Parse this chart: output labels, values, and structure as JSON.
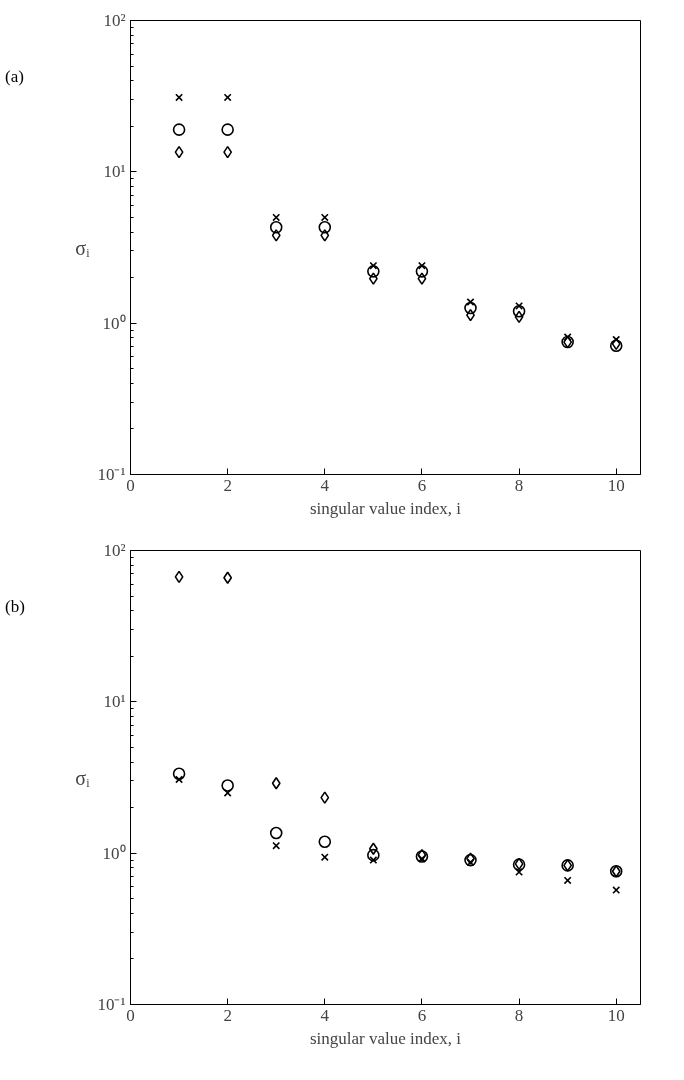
{
  "chart_data": [
    {
      "type": "scatter",
      "annotations": [
        "(a)"
      ],
      "xlabel": "singular value index, i",
      "ylabel": "σᵢ",
      "log": true,
      "grid": false,
      "xlim": [
        0,
        10.5
      ],
      "xticks": [
        0,
        2,
        4,
        6,
        8,
        10
      ],
      "ylim": [
        0.1,
        100
      ],
      "yticks": [
        {
          "value": 0.1,
          "label": "10⁻¹"
        },
        {
          "value": 1,
          "label": "10⁰"
        },
        {
          "value": 10,
          "label": "10¹"
        },
        {
          "value": 100,
          "label": "10²"
        }
      ],
      "x": [
        1,
        2,
        3,
        4,
        5,
        6,
        7,
        8,
        9,
        10
      ],
      "series": [
        {
          "color": "#000000",
          "marker": "cross",
          "values": [
            31,
            31,
            5.0,
            5.0,
            2.4,
            2.4,
            1.38,
            1.3,
            0.81,
            0.78
          ]
        },
        {
          "color": "#000000",
          "marker": "circle",
          "values": [
            19,
            19,
            4.3,
            4.3,
            2.2,
            2.2,
            1.26,
            1.2,
            0.75,
            0.71
          ]
        },
        {
          "color": "#000000",
          "marker": "diamond",
          "values": [
            13.5,
            13.5,
            3.8,
            3.8,
            1.97,
            1.97,
            1.13,
            1.1,
            0.75,
            0.73
          ]
        }
      ]
    },
    {
      "type": "scatter",
      "annotations": [
        "(b)"
      ],
      "xlabel": "singular value index, i",
      "ylabel": "σᵢ",
      "log": true,
      "grid": false,
      "xlim": [
        0,
        10.5
      ],
      "xticks": [
        0,
        2,
        4,
        6,
        8,
        10
      ],
      "ylim": [
        0.1,
        100
      ],
      "yticks": [
        {
          "value": 0.1,
          "label": "10⁻¹"
        },
        {
          "value": 1,
          "label": "10⁰"
        },
        {
          "value": 10,
          "label": "10¹"
        },
        {
          "value": 100,
          "label": "10²"
        }
      ],
      "x": [
        1,
        2,
        3,
        4,
        5,
        6,
        7,
        8,
        9,
        10
      ],
      "series": [
        {
          "color": "#000000",
          "marker": "cross",
          "values": [
            3.07,
            2.5,
            1.12,
            0.94,
            0.9,
            0.92,
            0.87,
            0.75,
            0.66,
            0.57
          ]
        },
        {
          "color": "#000000",
          "marker": "circle",
          "values": [
            3.35,
            2.8,
            1.36,
            1.19,
            0.97,
            0.95,
            0.9,
            0.84,
            0.83,
            0.76
          ]
        },
        {
          "color": "#000000",
          "marker": "diamond",
          "values": [
            67,
            66,
            2.9,
            2.33,
            1.07,
            0.97,
            0.92,
            0.85,
            0.83,
            0.76
          ]
        }
      ]
    }
  ]
}
